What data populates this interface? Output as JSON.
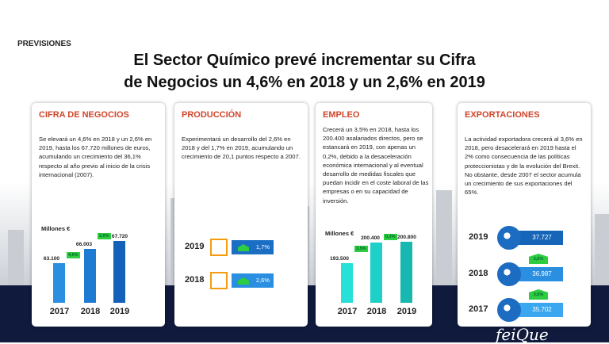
{
  "section": "PREVISIONES",
  "title_line1": "El Sector Químico prevé incrementar su Cifra",
  "title_line2": "de Negocios un 4,6% en 2018 y un 2,6% en 2019",
  "colors": {
    "accent": "#d0452b",
    "navy": "#101a3c",
    "blue": "#1a6fc4",
    "green": "#2ecc40",
    "teal": "#1fd6cf"
  },
  "logo": "feiQue",
  "cifra": {
    "heading": "CIFRA DE NEGOCIOS",
    "text": "Se elevará un 4,6% en 2018 y un 2,6% en 2019, hasta los 67.720 millones de euros, acumulando un crecimiento del 36,1% respecto al año previo al inicio de la crisis internacional (2007).",
    "unit": "Millones €",
    "chart_data": {
      "type": "bar",
      "categories": [
        "2017",
        "2018",
        "2019"
      ],
      "values": [
        63100,
        66003,
        67720
      ],
      "labels": [
        "63.100",
        "66.003",
        "67.720"
      ],
      "growth": [
        "4,6%",
        "2,6%"
      ],
      "ylim": [
        55000,
        68000
      ]
    }
  },
  "produccion": {
    "heading": "PRODUCCIÓN",
    "text": "Experimentará un desarrollo del 2,6% en 2018 y del 1,7% en 2019, acumulando un crecimiento de 20,1 puntos respecto a 2007.",
    "rows": [
      {
        "year": "2019",
        "value": "1,7%"
      },
      {
        "year": "2018",
        "value": "2,6%"
      }
    ]
  },
  "empleo": {
    "heading": "EMPLEO",
    "text": "Crecerá un 3,5% en 2018, hasta los 200.400 asalariados directos, pero se estancará en 2019, con apenas un 0,2%, debido a la desaceleración económica internacional y al eventual desarrollo de medidas fiscales que puedan incidir en el coste laboral de las empresas o en su capacidad de inversión.",
    "unit": "Millones €",
    "chart_data": {
      "type": "bar",
      "categories": [
        "2017",
        "2018",
        "2019"
      ],
      "values": [
        193500,
        200400,
        200800
      ],
      "labels": [
        "193.500",
        "200.400",
        "200.800"
      ],
      "growth": [
        "3,5%",
        "0,2%"
      ],
      "ylim": [
        180000,
        201500
      ]
    }
  },
  "exportaciones": {
    "heading": "EXPORTACIONES",
    "text": "La actividad exportadora crecerá al 3,6% en 2018, pero desacelerará en 2019 hasta el 2% como consecuencia de las políticas proteccionistas y de la evolución del Brexit. No obstante, desde 2007 el sector acumula un crecimiento de sus exportaciones del 65%.",
    "rows": [
      {
        "year": "2019",
        "value": "37.727"
      },
      {
        "year": "2018",
        "value": "36.987"
      },
      {
        "year": "2017",
        "value": "35.702"
      }
    ],
    "growth": [
      "2,0%",
      "3,6%"
    ]
  }
}
